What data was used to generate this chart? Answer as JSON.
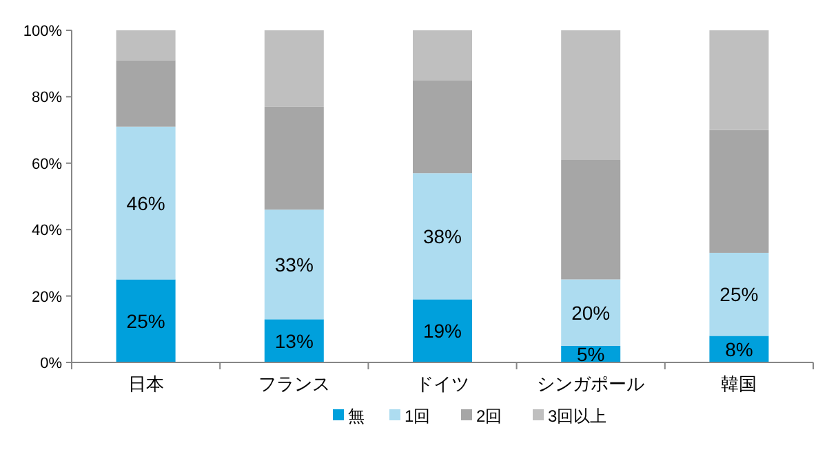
{
  "chart_data": {
    "type": "bar",
    "stacked": true,
    "categories": [
      "日本",
      "フランス",
      "ドイツ",
      "シンガポール",
      "韓国"
    ],
    "series": [
      {
        "name": "無",
        "color": "#00a0dc",
        "values": [
          25,
          13,
          19,
          5,
          8
        ],
        "value_labels": [
          "25%",
          "13%",
          "19%",
          "5%",
          "8%"
        ]
      },
      {
        "name": "1回",
        "color": "#addcf0",
        "values": [
          46,
          33,
          38,
          20,
          25
        ],
        "value_labels": [
          "46%",
          "33%",
          "38%",
          "20%",
          "25%"
        ]
      },
      {
        "name": "2回",
        "color": "#a6a6a6",
        "values": [
          20,
          31,
          28,
          36,
          37
        ]
      },
      {
        "name": "3回以上",
        "color": "#bfbfbf",
        "values": [
          9,
          23,
          15,
          39,
          30
        ]
      }
    ],
    "ylim": [
      0,
      100
    ],
    "yticks": [
      {
        "value": 0,
        "label": "0%"
      },
      {
        "value": 20,
        "label": "20%"
      },
      {
        "value": 40,
        "label": "40%"
      },
      {
        "value": 60,
        "label": "60%"
      },
      {
        "value": 80,
        "label": "80%"
      },
      {
        "value": 100,
        "label": "100%"
      }
    ],
    "grid": false,
    "legend": "bottom"
  }
}
